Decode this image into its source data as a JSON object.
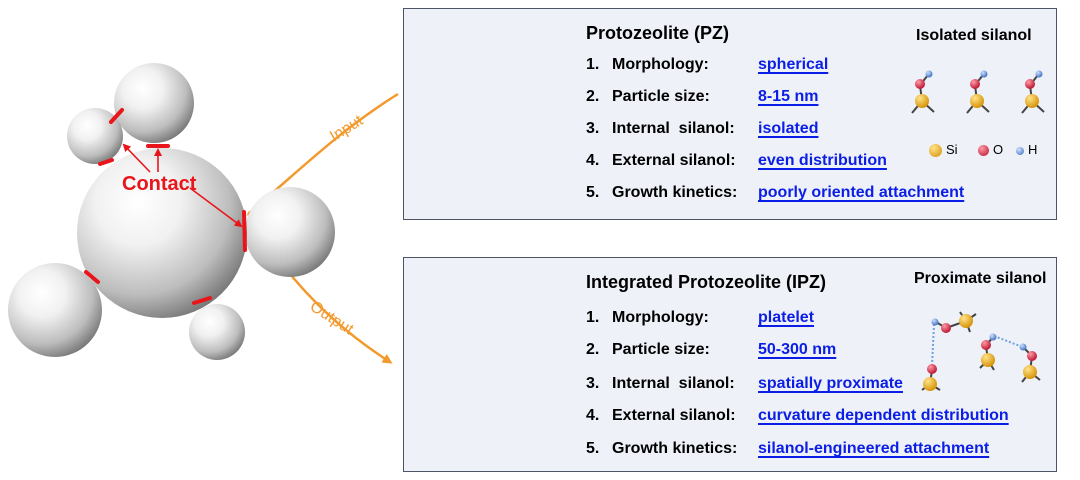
{
  "pz": {
    "title": "Protozeolite (PZ)",
    "silanol_title": "Isolated silanol",
    "items": [
      {
        "num": "1.",
        "key": "Morphology:",
        "value": "spherical"
      },
      {
        "num": "2.",
        "key": "Particle size:",
        "value": "8-15 nm"
      },
      {
        "num": "3.",
        "key": "Internal  silanol:",
        "value": "isolated"
      },
      {
        "num": "4.",
        "key": "External silanol:",
        "value": "even distribution"
      },
      {
        "num": "5.",
        "key": "Growth kinetics:",
        "value": "poorly oriented attachment"
      }
    ],
    "legend": {
      "si": "Si",
      "o": "O",
      "h": "H"
    }
  },
  "ipz": {
    "title": "Integrated Protozeolite (IPZ)",
    "silanol_title": "Proximate silanol",
    "items": [
      {
        "num": "1.",
        "key": "Morphology:",
        "value": "platelet"
      },
      {
        "num": "2.",
        "key": "Particle size:",
        "value": "50-300 nm"
      },
      {
        "num": "3.",
        "key": "Internal  silanol:",
        "value": "spatially proximate"
      },
      {
        "num": "4.",
        "key": "External silanol:",
        "value": "curvature dependent distribution"
      },
      {
        "num": "5.",
        "key": "Growth kinetics:",
        "value": "silanol-engineered attachment"
      }
    ]
  },
  "labels": {
    "contact": "Contact",
    "input": "Input",
    "output": "Output"
  },
  "colors": {
    "link_blue": "#0b1ee6",
    "contact_red": "#e8161b",
    "arrow_orange": "#f29a2e",
    "particle_orange": "#f5a632",
    "si_yellow": "#f2b51c",
    "o_red": "#e0334a",
    "h_blue": "#5d8fd6",
    "panel_bg": "#eef1f7"
  }
}
